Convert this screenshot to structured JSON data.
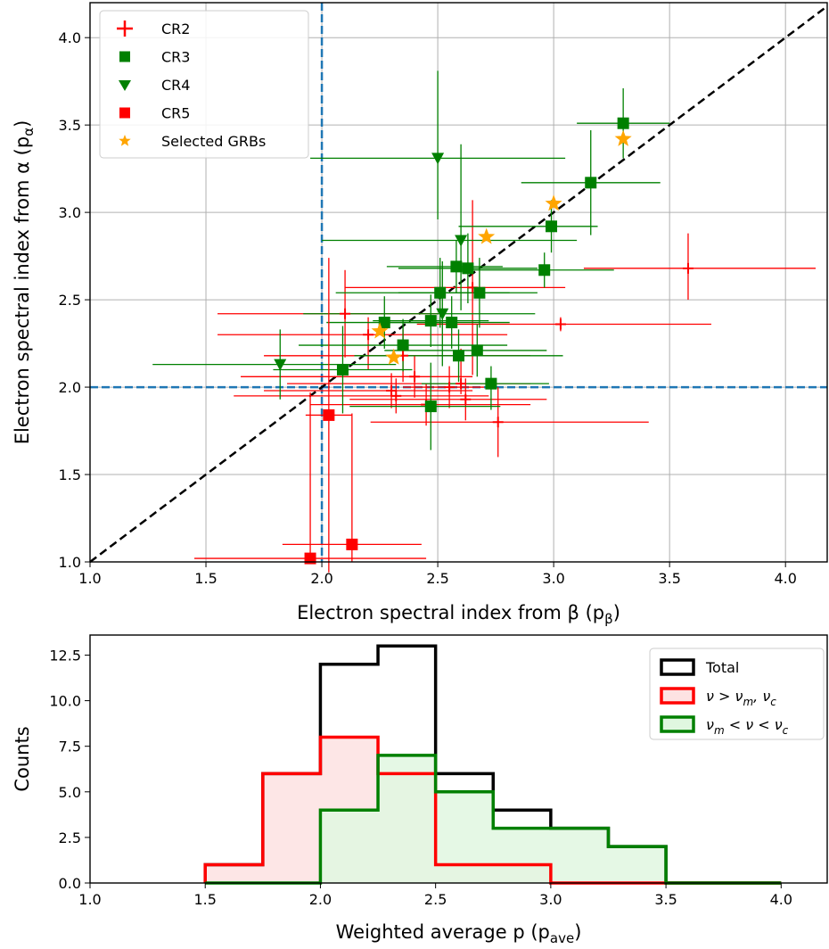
{
  "chart_data": [
    {
      "type": "scatter",
      "xlabel": "Electron spectral index from β (p",
      "xlabel_sub": "β",
      "ylabel": "Electron spectral index from α (p",
      "ylabel_sub": "α",
      "xlim": [
        1.0,
        4.18
      ],
      "ylim": [
        1.0,
        4.2
      ],
      "xticks": [
        1.0,
        1.5,
        2.0,
        2.5,
        3.0,
        3.5,
        4.0
      ],
      "yticks": [
        1.0,
        1.5,
        2.0,
        2.5,
        3.0,
        3.5,
        4.0
      ],
      "tick_labels_x": [
        "1.0",
        "1.5",
        "2.0",
        "2.5",
        "3.0",
        "3.5",
        "4.0"
      ],
      "tick_labels_y": [
        "1.0",
        "1.5",
        "2.0",
        "2.5",
        "3.0",
        "3.5",
        "4.0"
      ],
      "grid": true,
      "legend_position": "upper-left",
      "reference_lines": {
        "diagonal": "y = x",
        "vertical_x": 2.0,
        "horizontal_y": 2.0
      },
      "colors": {
        "CR2": "#ff0000",
        "CR3": "#008000",
        "CR4": "#008000",
        "CR5": "#ff0000",
        "Selected GRBs": "#ffa500",
        "ref_line": "#1f77b4"
      },
      "series": [
        {
          "name": "CR2",
          "marker": "plus",
          "color": "#ff0000",
          "points": [
            {
              "x": 3.58,
              "y": 2.68,
              "xerr": [
                0.45,
                0.55
              ],
              "yerr": [
                0.18,
                0.2
              ]
            },
            {
              "x": 3.03,
              "y": 2.36,
              "xerr": [
                0.62,
                0.65
              ],
              "yerr": [
                0.04,
                0.04
              ]
            },
            {
              "x": 2.76,
              "y": 1.8,
              "xerr": [
                0.55,
                0.65
              ],
              "yerr": [
                0.2,
                0.2
              ]
            },
            {
              "x": 2.65,
              "y": 2.57,
              "xerr": [
                0.55,
                0.4
              ],
              "yerr": [
                0.5,
                0.5
              ]
            },
            {
              "x": 2.1,
              "y": 2.42,
              "xerr": [
                0.55,
                0.4
              ],
              "yerr": [
                0.25,
                0.25
              ]
            },
            {
              "x": 2.2,
              "y": 2.3,
              "xerr": [
                0.65,
                0.6
              ],
              "yerr": [
                0.2,
                0.1
              ]
            },
            {
              "x": 2.35,
              "y": 2.18,
              "xerr": [
                0.6,
                0.55
              ],
              "yerr": [
                0.15,
                0.15
              ]
            },
            {
              "x": 2.4,
              "y": 2.06,
              "xerr": [
                0.75,
                0.25
              ],
              "yerr": [
                0.12,
                0.12
              ]
            },
            {
              "x": 2.55,
              "y": 2.0,
              "xerr": [
                0.2,
                0.15
              ],
              "yerr": [
                0.12,
                0.12
              ]
            },
            {
              "x": 2.6,
              "y": 2.02,
              "xerr": [
                0.75,
                0.3
              ],
              "yerr": [
                0.06,
                0.2
              ]
            },
            {
              "x": 2.62,
              "y": 1.93,
              "xerr": [
                0.5,
                0.35
              ],
              "yerr": [
                0.12,
                0.12
              ]
            },
            {
              "x": 2.45,
              "y": 1.9,
              "xerr": [
                0.5,
                0.45
              ],
              "yerr": [
                0.12,
                0.12
              ]
            },
            {
              "x": 2.3,
              "y": 1.98,
              "xerr": [
                0.55,
                0.35
              ],
              "yerr": [
                0.1,
                0.1
              ]
            },
            {
              "x": 2.32,
              "y": 1.95,
              "xerr": [
                0.7,
                0.4
              ],
              "yerr": [
                0.1,
                0.1
              ]
            }
          ]
        },
        {
          "name": "CR3",
          "marker": "square",
          "color": "#008000",
          "points": [
            {
              "x": 3.3,
              "y": 3.51,
              "xerr": [
                0.2,
                0.2
              ],
              "yerr": [
                0.2,
                0.2
              ]
            },
            {
              "x": 3.16,
              "y": 3.17,
              "xerr": [
                0.3,
                0.3
              ],
              "yerr": [
                0.3,
                0.3
              ]
            },
            {
              "x": 2.99,
              "y": 2.92,
              "xerr": [
                0.4,
                0.2
              ],
              "yerr": [
                0.15,
                0.15
              ]
            },
            {
              "x": 2.96,
              "y": 2.67,
              "xerr": [
                0.4,
                0.3
              ],
              "yerr": [
                0.1,
                0.1
              ]
            },
            {
              "x": 2.58,
              "y": 2.69,
              "xerr": [
                0.3,
                0.2
              ],
              "yerr": [
                0.15,
                0.15
              ]
            },
            {
              "x": 2.63,
              "y": 2.68,
              "xerr": [
                0.3,
                0.3
              ],
              "yerr": [
                0.2,
                0.2
              ]
            },
            {
              "x": 2.68,
              "y": 2.54,
              "xerr": [
                0.35,
                0.25
              ],
              "yerr": [
                0.2,
                0.2
              ]
            },
            {
              "x": 2.51,
              "y": 2.54,
              "xerr": [
                0.45,
                0.3
              ],
              "yerr": [
                0.2,
                0.2
              ]
            },
            {
              "x": 2.47,
              "y": 2.38,
              "xerr": [
                0.25,
                0.25
              ],
              "yerr": [
                0.15,
                0.15
              ]
            },
            {
              "x": 2.56,
              "y": 2.37,
              "xerr": [
                0.3,
                0.25
              ],
              "yerr": [
                0.15,
                0.15
              ]
            },
            {
              "x": 2.27,
              "y": 2.37,
              "xerr": [
                0.25,
                0.25
              ],
              "yerr": [
                0.15,
                0.15
              ]
            },
            {
              "x": 2.35,
              "y": 2.24,
              "xerr": [
                0.45,
                0.45
              ],
              "yerr": [
                0.15,
                0.15
              ]
            },
            {
              "x": 2.59,
              "y": 2.18,
              "xerr": [
                0.45,
                0.45
              ],
              "yerr": [
                0.15,
                0.15
              ]
            },
            {
              "x": 2.67,
              "y": 2.21,
              "xerr": [
                0.4,
                0.3
              ],
              "yerr": [
                0.15,
                0.15
              ]
            },
            {
              "x": 2.09,
              "y": 2.1,
              "xerr": [
                0.3,
                0.3
              ],
              "yerr": [
                0.25,
                0.25
              ]
            },
            {
              "x": 2.73,
              "y": 2.02,
              "xerr": [
                0.3,
                0.25
              ],
              "yerr": [
                0.15,
                0.1
              ]
            },
            {
              "x": 2.47,
              "y": 1.89,
              "xerr": [
                0.35,
                0.3
              ],
              "yerr": [
                0.25,
                0.25
              ]
            }
          ]
        },
        {
          "name": "CR4",
          "marker": "triangle-down",
          "color": "#008000",
          "points": [
            {
              "x": 2.5,
              "y": 3.31,
              "xerr": [
                0.55,
                0.55
              ],
              "yerr": [
                0.35,
                0.5
              ]
            },
            {
              "x": 2.6,
              "y": 2.84,
              "xerr": [
                0.6,
                0.5
              ],
              "yerr": [
                0.4,
                0.55
              ]
            },
            {
              "x": 2.52,
              "y": 2.42,
              "xerr": [
                0.6,
                0.4
              ],
              "yerr": [
                0.3,
                0.3
              ]
            },
            {
              "x": 1.82,
              "y": 2.13,
              "xerr": [
                0.55,
                0.5
              ],
              "yerr": [
                0.2,
                0.2
              ]
            }
          ]
        },
        {
          "name": "CR5",
          "marker": "square",
          "color": "#ff0000",
          "points": [
            {
              "x": 2.03,
              "y": 1.84,
              "xerr": [
                0.1,
                0.1
              ],
              "yerr": [
                0.9,
                0.9
              ]
            },
            {
              "x": 2.13,
              "y": 1.1,
              "xerr": [
                0.3,
                0.3
              ],
              "yerr": [
                0.1,
                0.75
              ]
            },
            {
              "x": 1.95,
              "y": 1.02,
              "xerr": [
                0.5,
                0.5
              ],
              "yerr": [
                0.02,
                0.95
              ]
            }
          ]
        },
        {
          "name": "Selected GRBs",
          "marker": "star",
          "color": "#ffa500",
          "points": [
            {
              "x": 3.3,
              "y": 3.42
            },
            {
              "x": 3.0,
              "y": 3.05
            },
            {
              "x": 2.71,
              "y": 2.86
            },
            {
              "x": 2.25,
              "y": 2.32
            },
            {
              "x": 2.31,
              "y": 2.17
            }
          ]
        }
      ]
    },
    {
      "type": "histogram",
      "xlabel": "Weighted average p (p",
      "xlabel_sub": "ave",
      "ylabel": "Counts",
      "xlim": [
        1.0,
        4.2
      ],
      "ylim": [
        0,
        13.6
      ],
      "xticks": [
        1.0,
        1.5,
        2.0,
        2.5,
        3.0,
        3.5,
        4.0
      ],
      "yticks": [
        0.0,
        2.5,
        5.0,
        7.5,
        10.0,
        12.5
      ],
      "tick_labels_x": [
        "1.0",
        "1.5",
        "2.0",
        "2.5",
        "3.0",
        "3.5",
        "4.0"
      ],
      "tick_labels_y": [
        "0.0",
        "2.5",
        "5.0",
        "7.5",
        "10.0",
        "12.5"
      ],
      "legend_position": "upper-right",
      "bin_edges": [
        1.5,
        1.75,
        2.0,
        2.25,
        2.5,
        2.75,
        3.0,
        3.25,
        3.5,
        3.75,
        4.0
      ],
      "series": [
        {
          "name": "Total",
          "color": "#000000",
          "fill": "none",
          "counts": [
            1,
            6,
            12,
            13,
            6,
            4,
            3,
            2,
            0,
            0
          ]
        },
        {
          "name": "ν > ν_m, ν_c",
          "color": "#ff0000",
          "fill": "#fde2e2",
          "counts": [
            1,
            6,
            8,
            6,
            1,
            1,
            0,
            0,
            0,
            0
          ]
        },
        {
          "name": "ν_m < ν < ν_c",
          "color": "#008000",
          "fill": "#e0f7e0",
          "counts": [
            0,
            0,
            4,
            7,
            5,
            3,
            3,
            2,
            0,
            0
          ]
        }
      ]
    }
  ]
}
